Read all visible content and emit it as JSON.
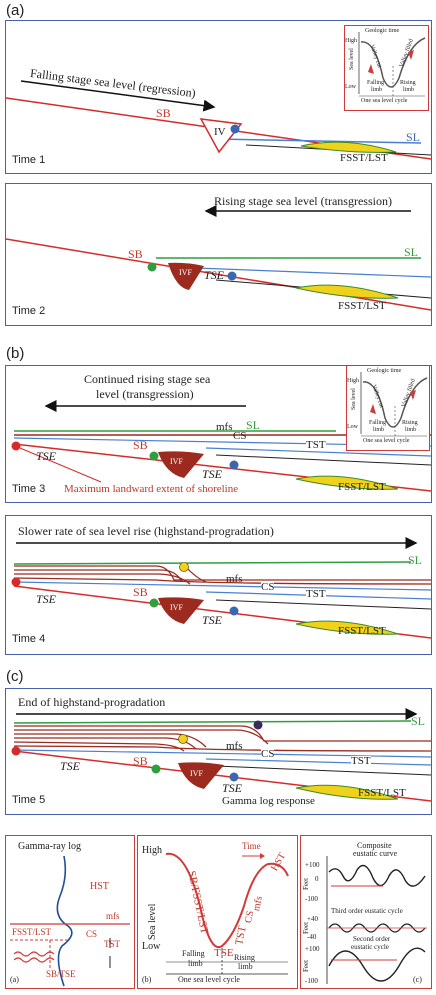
{
  "labels": {
    "a": "(a)",
    "b": "(b)",
    "c": "(c)"
  },
  "panel_a1": {
    "arrow_text": "Falling stage sea level (regression)",
    "sb": "SB",
    "iv": "IV",
    "sl": "SL",
    "fsst": "FSST/LST",
    "time": "Time 1"
  },
  "panel_a2": {
    "arrow_text": "Rising stage sea level (transgression)",
    "sb": "SB",
    "sl": "SL",
    "ivf": "IVF",
    "tse": "TSE",
    "fsst": "FSST/LST",
    "time": "Time 2"
  },
  "panel_b1": {
    "arrow_text_1": "Continued rising stage sea",
    "arrow_text_2": "level (transgression)",
    "mfs": "mfs",
    "sl": "SL",
    "cs": "CS",
    "tst": "TST",
    "sb": "SB",
    "tse": "TSE",
    "tse2": "TSE",
    "ivf": "IVF",
    "fsst": "FSST/LST",
    "time": "Time 3",
    "shoreline": "Maximum landward extent of shoreline"
  },
  "panel_b2": {
    "arrow_text": "Slower rate of sea level rise (highstand-progradation)",
    "sl": "SL",
    "mfs": "mfs",
    "cs": "CS",
    "tst": "TST",
    "tse": "TSE",
    "sb": "SB",
    "ivf": "IVF",
    "tse2": "TSE",
    "fsst": "FSST/LST",
    "time": "Time 4"
  },
  "panel_c1": {
    "arrow_text": "End of highstand-progradation",
    "sl": "SL",
    "mfs": "mfs",
    "cs": "CS",
    "tst": "TST",
    "tse": "TSE",
    "sb": "SB",
    "ivf": "IVF",
    "tse2": "TSE",
    "gamma": "Gamma log response",
    "fsst": "FSST/LST",
    "time": "Time 5"
  },
  "inset": {
    "geologic_time": "Geologic time",
    "high": "High",
    "low": "Low",
    "sea_level": "Sea level",
    "valley_cut": "Valley cut",
    "valley_filled": "Valley filled",
    "falling": "Falling",
    "limb": "limb",
    "rising": "Rising",
    "cycle": "One sea level cycle"
  },
  "bottom_a": {
    "title": "Gamma-ray log",
    "hst": "HST",
    "mfs": "mfs",
    "fsst": "FSST/LST",
    "cs": "CS",
    "tst": "TST",
    "sbtse": "SB/TSE",
    "tag": "(a)"
  },
  "bottom_b": {
    "high": "High",
    "time": "Time",
    "hst": "HST",
    "sea_level": "Sea level",
    "sbfsst": "SB/FSST/LST",
    "tst": "TST",
    "cs": "CS",
    "mfs": "mfs",
    "low": "Low",
    "tse": "TSE",
    "falling": "Falling",
    "rising": "Rising",
    "limb": "limb",
    "cycle": "One sea level cycle",
    "tag": "(b)"
  },
  "bottom_c": {
    "composite_1": "Composite",
    "composite_2": "eustatic curve",
    "third_1": "Third order eustatic cycle",
    "second_1": "Second order",
    "second_2": "eustatic cycle",
    "feet": "Feet",
    "p100": "+100",
    "m100": "-100",
    "p40": "+40",
    "m40": "-40",
    "zero": "0",
    "tag": "(c)"
  },
  "colors": {
    "sb_line": "#d62b2b",
    "sl_line": "#2e9e3e",
    "blue_line": "#4a7fd0",
    "valley": "#9c2a1f",
    "panel_border": "#4a5fb0",
    "inset_border": "#d23a3a",
    "wedge": "#f0d21a"
  }
}
